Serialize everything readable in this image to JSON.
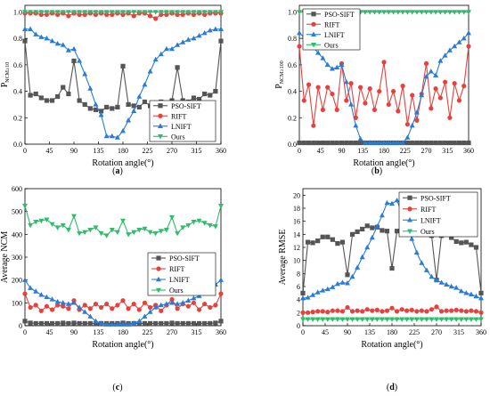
{
  "colors": {
    "PSO-SIFT": "#555555",
    "RIFT": "#e8413c",
    "LNIFT": "#2a7bd8",
    "Ours": "#2ebd6a"
  },
  "chart_data": [
    {
      "type": "line",
      "caption": "a",
      "xlabel": "Rotation angle(°)",
      "ylabel": "P",
      "ylabel_sub": "NCM≥10",
      "xlim": [
        0,
        360
      ],
      "ylim": [
        0,
        1.05
      ],
      "xticks": [
        "0",
        "45",
        "90",
        "135",
        "180",
        "225",
        "270",
        "315",
        "360"
      ],
      "yticks": [
        "0.0",
        "0.2",
        "0.4",
        "0.6",
        "0.8",
        "1.0"
      ],
      "legend_position": "bottom-right",
      "x": [
        0,
        10,
        20,
        30,
        40,
        50,
        60,
        70,
        80,
        90,
        100,
        110,
        120,
        130,
        140,
        150,
        160,
        170,
        180,
        190,
        200,
        210,
        220,
        230,
        240,
        250,
        260,
        270,
        280,
        290,
        300,
        310,
        320,
        330,
        340,
        350,
        360
      ],
      "series": [
        {
          "name": "PSO-SIFT",
          "values": [
            0.78,
            0.37,
            0.38,
            0.35,
            0.33,
            0.33,
            0.36,
            0.43,
            0.38,
            0.63,
            0.33,
            0.3,
            0.27,
            0.26,
            0.25,
            0.28,
            0.27,
            0.28,
            0.59,
            0.3,
            0.29,
            0.28,
            0.32,
            0.29,
            0.28,
            0.32,
            0.31,
            0.33,
            0.58,
            0.33,
            0.32,
            0.35,
            0.34,
            0.38,
            0.37,
            0.4,
            0.78
          ]
        },
        {
          "name": "RIFT",
          "values": [
            0.99,
            0.99,
            0.99,
            0.98,
            0.98,
            0.99,
            0.98,
            0.99,
            0.97,
            0.99,
            0.98,
            0.98,
            0.99,
            0.98,
            0.99,
            0.98,
            0.98,
            0.99,
            0.98,
            0.99,
            0.97,
            0.99,
            0.99,
            0.97,
            0.95,
            0.98,
            0.98,
            0.99,
            0.98,
            0.98,
            0.99,
            0.98,
            0.99,
            0.98,
            0.99,
            0.99,
            0.99
          ]
        },
        {
          "name": "LNIFT",
          "values": [
            0.87,
            0.87,
            0.83,
            0.81,
            0.8,
            0.78,
            0.76,
            0.75,
            0.71,
            0.72,
            0.63,
            0.53,
            0.42,
            0.3,
            0.22,
            0.06,
            0.06,
            0.05,
            0.1,
            0.18,
            0.25,
            0.36,
            0.45,
            0.55,
            0.64,
            0.68,
            0.72,
            0.72,
            0.75,
            0.77,
            0.79,
            0.8,
            0.82,
            0.84,
            0.86,
            0.87,
            0.87
          ]
        },
        {
          "name": "Ours",
          "values": [
            1.0,
            1.0,
            1.0,
            1.0,
            1.0,
            1.0,
            1.0,
            1.0,
            1.0,
            1.0,
            1.0,
            1.0,
            1.0,
            1.0,
            1.0,
            1.0,
            1.0,
            1.0,
            1.0,
            1.0,
            1.0,
            1.0,
            1.0,
            1.0,
            1.0,
            1.0,
            1.0,
            1.0,
            1.0,
            1.0,
            1.0,
            1.0,
            1.0,
            1.0,
            1.0,
            1.0,
            1.0
          ]
        }
      ]
    },
    {
      "type": "line",
      "caption": "b",
      "xlabel": "Rotation angle(°)",
      "ylabel": "P",
      "ylabel_sub": "NCM≥100",
      "xlim": [
        0,
        360
      ],
      "ylim": [
        0,
        1.05
      ],
      "xticks": [
        "0",
        "45",
        "90",
        "135",
        "180",
        "225",
        "270",
        "315",
        "360"
      ],
      "yticks": [
        "0.0",
        "0.2",
        "0.4",
        "0.6",
        "0.8",
        "1.0"
      ],
      "legend_position": "top-left",
      "x": [
        0,
        10,
        20,
        30,
        40,
        50,
        60,
        70,
        80,
        90,
        100,
        110,
        120,
        130,
        140,
        150,
        160,
        170,
        180,
        190,
        200,
        210,
        220,
        230,
        240,
        250,
        260,
        270,
        280,
        290,
        300,
        310,
        320,
        330,
        340,
        350,
        360
      ],
      "series": [
        {
          "name": "PSO-SIFT",
          "values": [
            0.01,
            0.01,
            0.01,
            0.01,
            0.01,
            0.01,
            0.01,
            0.01,
            0.01,
            0.01,
            0.01,
            0.01,
            0.01,
            0.01,
            0.01,
            0.01,
            0.01,
            0.01,
            0.01,
            0.01,
            0.01,
            0.01,
            0.01,
            0.01,
            0.01,
            0.01,
            0.01,
            0.01,
            0.01,
            0.01,
            0.01,
            0.01,
            0.01,
            0.01,
            0.01,
            0.01,
            0.01
          ]
        },
        {
          "name": "RIFT",
          "values": [
            0.74,
            0.33,
            0.45,
            0.14,
            0.43,
            0.26,
            0.43,
            0.38,
            0.26,
            0.61,
            0.33,
            0.46,
            0.2,
            0.43,
            0.31,
            0.42,
            0.26,
            0.4,
            0.62,
            0.3,
            0.4,
            0.25,
            0.44,
            0.15,
            0.37,
            0.18,
            0.38,
            0.61,
            0.27,
            0.42,
            0.35,
            0.47,
            0.2,
            0.46,
            0.33,
            0.44,
            0.74
          ]
        },
        {
          "name": "LNIFT",
          "values": [
            0.84,
            0.81,
            0.77,
            0.73,
            0.69,
            0.65,
            0.6,
            0.57,
            0.58,
            0.6,
            0.47,
            0.3,
            0.14,
            0.04,
            0.01,
            0.01,
            0.01,
            0.01,
            0.01,
            0.01,
            0.01,
            0.01,
            0.01,
            0.05,
            0.14,
            0.24,
            0.37,
            0.51,
            0.55,
            0.52,
            0.63,
            0.67,
            0.71,
            0.74,
            0.77,
            0.8,
            0.84
          ]
        },
        {
          "name": "Ours",
          "values": [
            1.0,
            1.0,
            1.0,
            1.0,
            1.0,
            1.0,
            1.0,
            1.0,
            1.0,
            1.0,
            1.0,
            1.0,
            1.0,
            1.0,
            1.0,
            1.0,
            1.0,
            1.0,
            1.0,
            1.0,
            1.0,
            1.0,
            1.0,
            1.0,
            1.0,
            1.0,
            1.0,
            1.0,
            1.0,
            1.0,
            1.0,
            1.0,
            1.0,
            1.0,
            1.0,
            1.0,
            1.0
          ]
        }
      ]
    },
    {
      "type": "line",
      "caption": "c",
      "xlabel": "Rotation angle(°)",
      "ylabel": "Average NCM",
      "xlim": [
        0,
        360
      ],
      "ylim": [
        0,
        600
      ],
      "xticks": [
        "0",
        "45",
        "90",
        "135",
        "180",
        "225",
        "270",
        "315",
        "360"
      ],
      "yticks": [
        "0",
        "100",
        "200",
        "300",
        "400",
        "500",
        "600"
      ],
      "legend_position": "right",
      "x": [
        0,
        10,
        20,
        30,
        40,
        50,
        60,
        70,
        80,
        90,
        100,
        110,
        120,
        130,
        140,
        150,
        160,
        170,
        180,
        190,
        200,
        210,
        220,
        230,
        240,
        250,
        260,
        270,
        280,
        290,
        300,
        310,
        320,
        330,
        340,
        350,
        360
      ],
      "series": [
        {
          "name": "PSO-SIFT",
          "values": [
            20,
            12,
            10,
            10,
            10,
            10,
            10,
            12,
            10,
            12,
            10,
            10,
            10,
            10,
            10,
            10,
            10,
            10,
            12,
            10,
            10,
            10,
            10,
            10,
            10,
            10,
            10,
            12,
            10,
            10,
            10,
            10,
            10,
            10,
            10,
            12,
            20
          ]
        },
        {
          "name": "RIFT",
          "values": [
            140,
            80,
            90,
            65,
            85,
            70,
            90,
            85,
            75,
            110,
            70,
            90,
            75,
            95,
            80,
            95,
            75,
            90,
            110,
            75,
            95,
            70,
            100,
            80,
            90,
            65,
            90,
            115,
            75,
            95,
            85,
            100,
            70,
            95,
            80,
            90,
            140
          ]
        },
        {
          "name": "LNIFT",
          "values": [
            200,
            165,
            150,
            135,
            125,
            115,
            105,
            100,
            95,
            100,
            80,
            60,
            40,
            20,
            10,
            5,
            5,
            5,
            5,
            5,
            10,
            20,
            40,
            60,
            80,
            90,
            95,
            100,
            95,
            100,
            110,
            120,
            130,
            145,
            160,
            180,
            200
          ]
        },
        {
          "name": "Ours",
          "values": [
            525,
            440,
            455,
            460,
            465,
            445,
            430,
            440,
            420,
            480,
            405,
            410,
            420,
            430,
            405,
            395,
            420,
            410,
            460,
            400,
            410,
            420,
            425,
            410,
            405,
            415,
            420,
            475,
            405,
            430,
            440,
            455,
            460,
            450,
            440,
            435,
            525
          ]
        }
      ]
    },
    {
      "type": "line",
      "caption": "d",
      "xlabel": "Rotation angle(°)",
      "ylabel": "Average RMSE",
      "xlim": [
        0,
        360
      ],
      "ylim": [
        0,
        21
      ],
      "xticks": [
        "0",
        "45",
        "90",
        "135",
        "180",
        "225",
        "270",
        "315",
        "360"
      ],
      "yticks": [
        "0",
        "2",
        "4",
        "6",
        "8",
        "10",
        "12",
        "14",
        "16",
        "18",
        "20"
      ],
      "legend_position": "top-right",
      "x": [
        0,
        10,
        20,
        30,
        40,
        50,
        60,
        70,
        80,
        90,
        100,
        110,
        120,
        130,
        140,
        150,
        160,
        170,
        180,
        190,
        200,
        210,
        220,
        230,
        240,
        250,
        260,
        270,
        280,
        290,
        300,
        310,
        320,
        330,
        340,
        350,
        360
      ],
      "series": [
        {
          "name": "PSO-SIFT",
          "values": [
            5.0,
            12.8,
            12.7,
            13.0,
            13.6,
            13.6,
            13.2,
            12.6,
            12.8,
            7.8,
            14.0,
            14.4,
            14.8,
            15.3,
            15.0,
            15.1,
            14.6,
            14.5,
            8.8,
            14.5,
            14.8,
            15.2,
            15.5,
            15.0,
            14.7,
            14.2,
            13.8,
            7.0,
            13.8,
            14.0,
            13.5,
            12.9,
            12.7,
            12.8,
            12.4,
            12.0,
            5.0
          ]
        },
        {
          "name": "RIFT",
          "values": [
            2.0,
            2.0,
            2.1,
            2.2,
            2.2,
            2.1,
            2.3,
            2.3,
            2.2,
            2.8,
            2.2,
            2.3,
            2.2,
            2.5,
            2.3,
            2.4,
            2.2,
            2.3,
            2.7,
            2.2,
            2.5,
            2.3,
            2.4,
            2.2,
            2.3,
            2.2,
            2.5,
            2.9,
            2.2,
            2.3,
            2.3,
            2.4,
            2.3,
            2.2,
            2.3,
            2.2,
            2.0
          ]
        },
        {
          "name": "LNIFT",
          "values": [
            4.2,
            4.3,
            4.7,
            5.1,
            5.4,
            5.6,
            5.9,
            6.4,
            6.6,
            6.5,
            7.5,
            8.9,
            10.5,
            12.0,
            13.5,
            15.2,
            16.9,
            18.8,
            18.7,
            19.2,
            17.3,
            15.6,
            13.3,
            11.2,
            9.6,
            8.5,
            7.5,
            7.0,
            6.6,
            6.3,
            6.0,
            5.8,
            5.3,
            5.0,
            4.8,
            4.5,
            4.2
          ]
        },
        {
          "name": "Ours",
          "values": [
            1.0,
            1.0,
            1.0,
            1.0,
            1.0,
            1.0,
            1.0,
            1.0,
            1.0,
            1.0,
            1.0,
            1.0,
            1.0,
            1.0,
            1.0,
            1.0,
            1.0,
            1.0,
            1.0,
            1.0,
            1.0,
            1.0,
            1.0,
            1.0,
            1.0,
            1.0,
            1.0,
            1.0,
            1.0,
            1.0,
            1.0,
            1.0,
            1.0,
            1.0,
            1.0,
            1.0,
            1.0
          ]
        }
      ]
    }
  ]
}
